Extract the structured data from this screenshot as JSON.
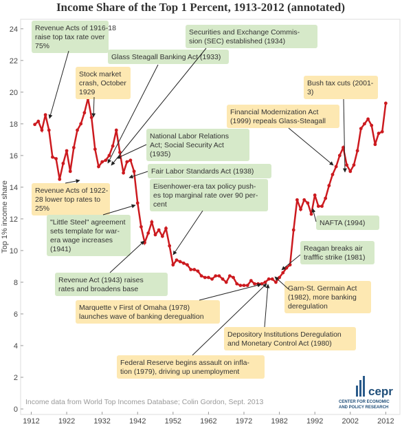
{
  "chart_data": {
    "type": "line",
    "title": "Income Share of the Top 1 Percent, 1913-2012 (annotated)",
    "y_label": "Top 1% income share",
    "source": "Income data from World Top Incomes Database; Colin Gordon, Sept. 2013",
    "logo": {
      "name": "cepr",
      "lines": [
        "CENTER FOR ECONOMIC",
        "AND POLICY RESEARCH"
      ]
    },
    "color": "#cc1a1f",
    "x": [
      1913,
      1914,
      1915,
      1916,
      1917,
      1918,
      1919,
      1920,
      1921,
      1922,
      1923,
      1924,
      1925,
      1926,
      1927,
      1928,
      1929,
      1930,
      1931,
      1932,
      1933,
      1934,
      1935,
      1936,
      1937,
      1938,
      1939,
      1940,
      1941,
      1942,
      1943,
      1944,
      1945,
      1946,
      1947,
      1948,
      1949,
      1950,
      1951,
      1952,
      1953,
      1954,
      1955,
      1956,
      1957,
      1958,
      1959,
      1960,
      1961,
      1962,
      1963,
      1964,
      1965,
      1966,
      1967,
      1968,
      1969,
      1970,
      1971,
      1972,
      1973,
      1974,
      1975,
      1976,
      1977,
      1978,
      1979,
      1980,
      1981,
      1982,
      1983,
      1984,
      1985,
      1986,
      1987,
      1988,
      1989,
      1990,
      1991,
      1992,
      1993,
      1994,
      1995,
      1996,
      1997,
      1998,
      1999,
      2000,
      2001,
      2002,
      2003,
      2004,
      2005,
      2006,
      2007,
      2008,
      2009,
      2010,
      2011,
      2012
    ],
    "values": [
      17.96,
      18.16,
      17.6,
      18.57,
      17.6,
      15.9,
      15.8,
      14.5,
      15.5,
      16.3,
      15.0,
      16.5,
      17.6,
      18.0,
      18.7,
      19.6,
      18.4,
      16.4,
      15.3,
      15.6,
      15.7,
      16.0,
      16.6,
      17.6,
      16.2,
      14.9,
      15.6,
      15.7,
      15.0,
      13.0,
      11.5,
      10.5,
      11.1,
      11.8,
      11.0,
      11.3,
      10.9,
      11.4,
      10.3,
      9.1,
      9.4,
      9.3,
      9.2,
      9.1,
      8.8,
      8.8,
      8.7,
      8.4,
      8.3,
      8.3,
      8.2,
      8.4,
      8.4,
      8.2,
      8.0,
      8.4,
      8.3,
      7.9,
      7.8,
      7.8,
      7.8,
      8.1,
      7.9,
      7.9,
      7.9,
      8.0,
      8.2,
      8.2,
      8.0,
      8.3,
      8.6,
      8.9,
      9.1,
      11.3,
      13.2,
      12.6,
      13.2,
      13.0,
      12.3,
      13.5,
      12.8,
      12.8,
      13.3,
      14.1,
      14.8,
      15.3,
      16.0,
      16.5,
      15.4,
      15.0,
      15.4,
      16.3,
      17.7,
      18.0,
      18.3,
      17.9,
      16.7,
      17.4,
      17.5,
      19.3
    ],
    "xlim": [
      1909,
      2016
    ],
    "xticks": [
      1912,
      1922,
      1932,
      1942,
      1952,
      1962,
      1972,
      1982,
      1992,
      2002,
      2012
    ],
    "ylim": [
      0,
      24.6
    ],
    "yticks": [
      0,
      2,
      4,
      6,
      8,
      10,
      12,
      14,
      16,
      18,
      20,
      22,
      24
    ],
    "annotations": [
      {
        "lines": [
          "Revenue Acts of 1916-18",
          "raise top tax rate over",
          "75%"
        ],
        "color": "#d6e9c9"
      },
      {
        "lines": [
          "Glass Steagall Banking Act (1933)"
        ],
        "color": "#d6e9c9"
      },
      {
        "lines": [
          "Securities and Exchange Commis-",
          "sion (SEC) established (1934)"
        ],
        "color": "#d6e9c9"
      },
      {
        "lines": [
          "Stock market",
          "crash, October",
          "1929"
        ],
        "color": "#fde8b2"
      },
      {
        "lines": [
          "Bush tax cuts (2001-",
          "3)"
        ],
        "color": "#fde8b2"
      },
      {
        "lines": [
          "Financial Modernization Act",
          "(1999) repeals Glass-Steagall"
        ],
        "color": "#fde8b2"
      },
      {
        "lines": [
          "National Labor Relations",
          "Act; Social Security Act",
          "(1935)"
        ],
        "color": "#d6e9c9"
      },
      {
        "lines": [
          "Fair Labor Standards Act (1938)"
        ],
        "color": "#d6e9c9"
      },
      {
        "lines": [
          "Eisenhower-era tax policy push-",
          "es top marginal rate over 90 per-",
          "cent"
        ],
        "color": "#d6e9c9"
      },
      {
        "lines": [
          "Revenue Acts of 1922-",
          "28 lower top rates to",
          "25%"
        ],
        "color": "#fde8b2"
      },
      {
        "lines": [
          "\"Little Steel\" agreement",
          "sets template for war-",
          "era wage increases",
          "(1941)"
        ],
        "color": "#d6e9c9"
      },
      {
        "lines": [
          "Reagan breaks air",
          "trafffic strike (1981)"
        ],
        "color": "#d6e9c9"
      },
      {
        "lines": [
          "NAFTA (1994)"
        ],
        "color": "#d6e9c9"
      },
      {
        "lines": [
          "Revenue Act (1943) raises",
          "rates and broadens base"
        ],
        "color": "#d6e9c9"
      },
      {
        "lines": [
          "Marquette v First of Omaha (1978)",
          "launches wave of banking deregualtion"
        ],
        "color": "#fde8b2"
      },
      {
        "lines": [
          "Garn-St. Germain Act",
          "(1982), more banking",
          "deregulation"
        ],
        "color": "#fde8b2"
      },
      {
        "lines": [
          "Depository Institutions Deregulation",
          "and Monetary Control Act (1980)"
        ],
        "color": "#fde8b2"
      },
      {
        "lines": [
          "Federal Reserve begins assault on infla-",
          "tion (1979), driving up unemployment"
        ],
        "color": "#fde8b2"
      }
    ]
  }
}
